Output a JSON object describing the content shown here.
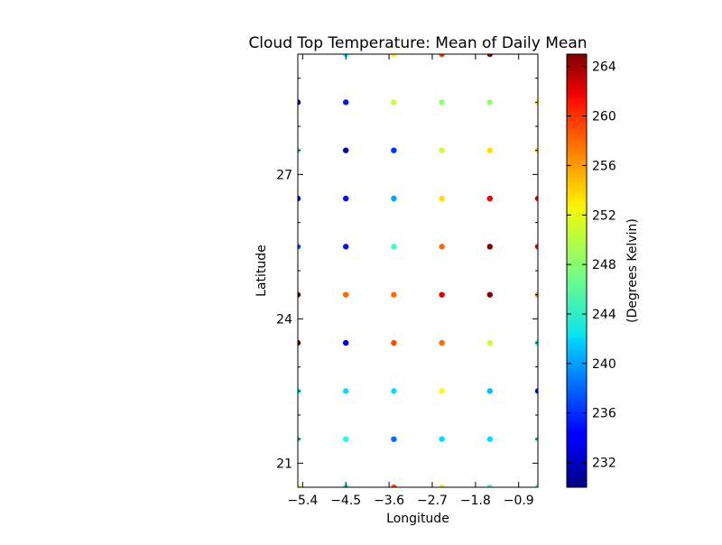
{
  "chart_data": {
    "type": "scatter",
    "title": "Cloud Top Temperature: Mean of Daily Mean",
    "xlabel": "Longitude",
    "ylabel": "Latitude",
    "xlim": [
      -5.5,
      -0.5
    ],
    "ylim": [
      20.5,
      29.5
    ],
    "xticks": [
      -5.4,
      -4.5,
      -3.6,
      -2.7,
      -1.8,
      -0.9
    ],
    "xtick_labels": [
      "−5.4",
      "−4.5",
      "−3.6",
      "−2.7",
      "−1.8",
      "−0.9"
    ],
    "yticks": [
      21,
      24,
      27
    ],
    "ytick_labels": [
      "21",
      "24",
      "27"
    ],
    "colorbar": {
      "label": "(Degrees Kelvin)",
      "colormap": "jet",
      "range": [
        230,
        265
      ],
      "ticks": [
        232,
        236,
        240,
        244,
        248,
        252,
        256,
        260,
        264
      ],
      "tick_labels": [
        "232",
        "236",
        "240",
        "244",
        "248",
        "252",
        "256",
        "260",
        "264"
      ]
    },
    "grid": false,
    "x": [
      -5.5,
      -4.5,
      -3.5,
      -2.5,
      -1.5,
      -0.5
    ],
    "y": [
      29.5,
      28.5,
      27.5,
      26.5,
      25.5,
      24.5,
      23.5,
      22.5,
      21.5,
      20.5
    ],
    "values": [
      [
        null,
        243,
        252,
        259,
        265,
        null
      ],
      [
        231,
        235,
        250,
        248,
        248,
        252
      ],
      [
        246,
        231,
        236,
        250,
        253,
        253
      ],
      [
        234,
        235,
        240,
        253,
        261,
        260
      ],
      [
        238,
        235,
        245,
        257,
        265,
        260
      ],
      [
        265,
        257,
        257,
        262,
        265,
        256
      ],
      [
        265,
        234,
        258,
        257,
        250,
        243
      ],
      [
        243,
        242,
        242,
        252,
        241,
        235
      ],
      [
        245,
        244,
        238,
        242,
        242,
        246
      ],
      [
        252,
        244,
        258,
        250,
        246,
        245
      ]
    ]
  }
}
